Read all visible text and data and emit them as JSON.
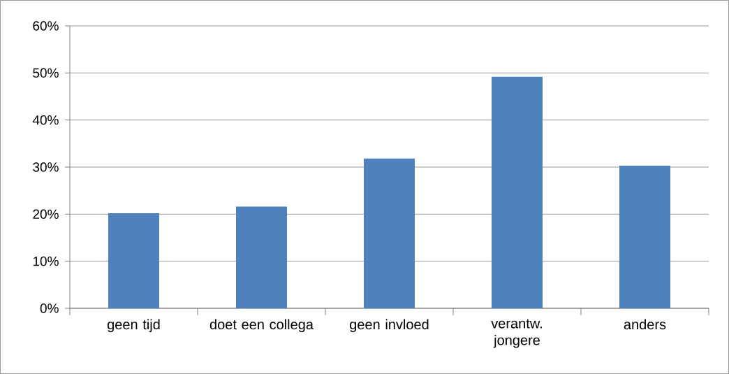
{
  "chart_data": {
    "type": "bar",
    "categories": [
      "geen tijd",
      "doet een collega",
      "geen invloed",
      "verantw. jongere",
      "anders"
    ],
    "values": [
      20.2,
      21.6,
      31.8,
      49.2,
      30.3
    ],
    "color": "#4f81bd",
    "ylim": [
      0,
      60
    ],
    "yticks": [
      {
        "value": 0,
        "label": "0%"
      },
      {
        "value": 10,
        "label": "10%"
      },
      {
        "value": 20,
        "label": "20%"
      },
      {
        "value": 30,
        "label": "30%"
      },
      {
        "value": 40,
        "label": "40%"
      },
      {
        "value": 50,
        "label": "50%"
      },
      {
        "value": 60,
        "label": "60%"
      }
    ],
    "grid": "y"
  }
}
